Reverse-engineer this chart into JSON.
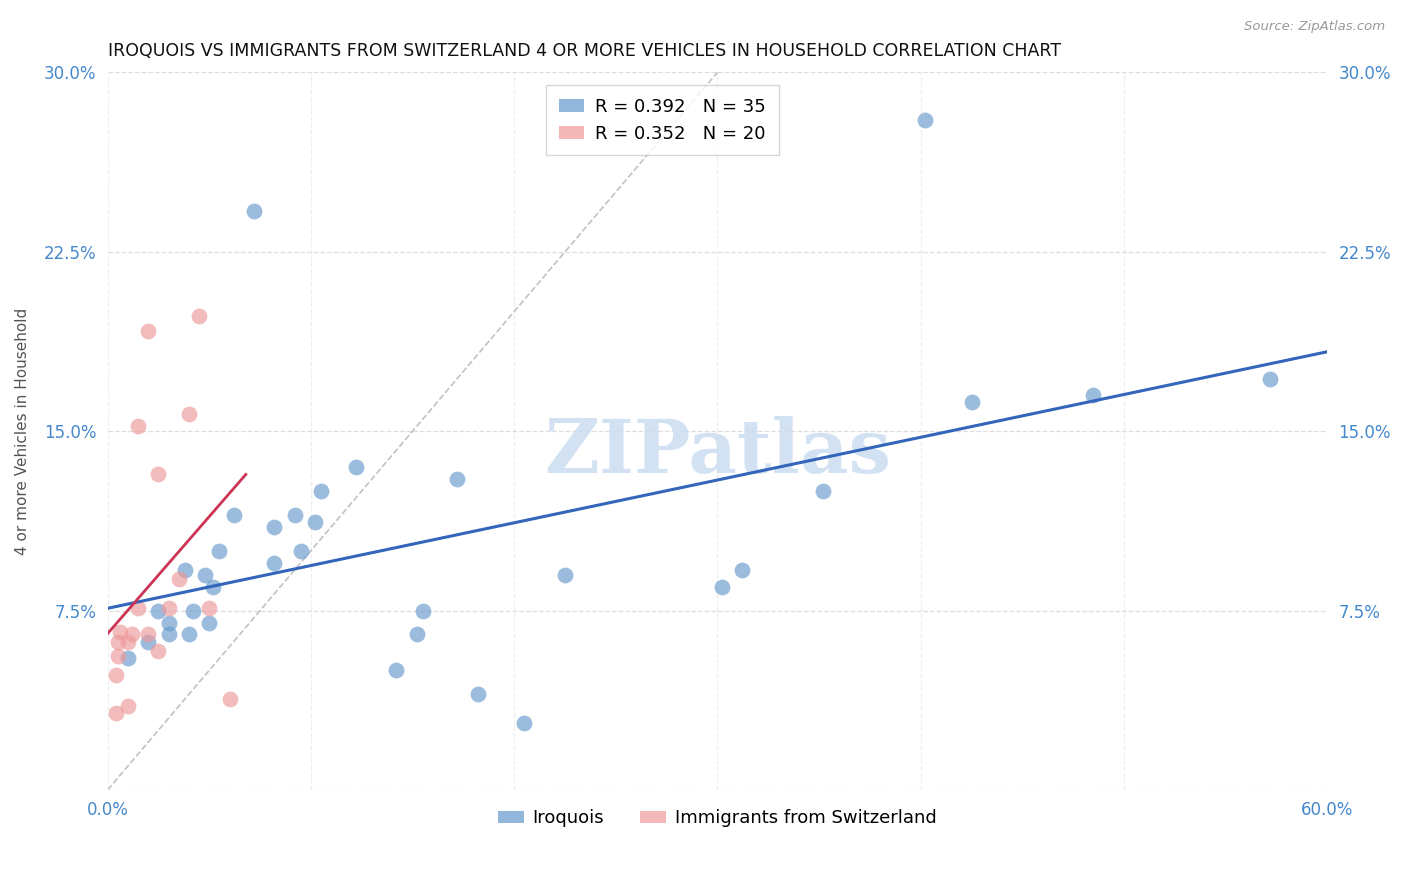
{
  "title": "IROQUOIS VS IMMIGRANTS FROM SWITZERLAND 4 OR MORE VEHICLES IN HOUSEHOLD CORRELATION CHART",
  "source": "Source: ZipAtlas.com",
  "ylabel": "4 or more Vehicles in Household",
  "xlim": [
    0.0,
    0.6
  ],
  "ylim": [
    0.0,
    0.3
  ],
  "xtick_positions": [
    0.0,
    0.1,
    0.2,
    0.3,
    0.4,
    0.5,
    0.6
  ],
  "xticklabels": [
    "0.0%",
    "",
    "",
    "",
    "",
    "",
    "60.0%"
  ],
  "ytick_positions": [
    0.0,
    0.075,
    0.15,
    0.225,
    0.3
  ],
  "yticklabels": [
    "",
    "7.5%",
    "15.0%",
    "22.5%",
    "30.0%"
  ],
  "background_color": "#ffffff",
  "grid_color": "#dddddd",
  "watermark": "ZIPatlas",
  "blue_color": "#6699cc",
  "pink_color": "#ee9999",
  "line_blue": "#3366bb",
  "line_pink": "#cc3355",
  "diagonal_color": "#bbbbbb",
  "tick_color": "#4488cc",
  "iroquois_label": "Iroquois",
  "swiss_label": "Immigrants from Switzerland",
  "iroquois_x": [
    0.01,
    0.02,
    0.025,
    0.03,
    0.03,
    0.038,
    0.04,
    0.042,
    0.048,
    0.05,
    0.052,
    0.055,
    0.062,
    0.072,
    0.082,
    0.082,
    0.092,
    0.095,
    0.102,
    0.105,
    0.122,
    0.142,
    0.152,
    0.155,
    0.172,
    0.182,
    0.205,
    0.225,
    0.302,
    0.312,
    0.352,
    0.402,
    0.425,
    0.485,
    0.572
  ],
  "iroquois_y": [
    0.055,
    0.062,
    0.075,
    0.07,
    0.065,
    0.092,
    0.065,
    0.075,
    0.09,
    0.07,
    0.085,
    0.1,
    0.115,
    0.242,
    0.095,
    0.11,
    0.115,
    0.1,
    0.112,
    0.125,
    0.135,
    0.05,
    0.065,
    0.075,
    0.13,
    0.04,
    0.028,
    0.09,
    0.085,
    0.092,
    0.125,
    0.28,
    0.162,
    0.165,
    0.172
  ],
  "swiss_x": [
    0.004,
    0.004,
    0.005,
    0.005,
    0.006,
    0.01,
    0.01,
    0.012,
    0.015,
    0.015,
    0.02,
    0.02,
    0.025,
    0.025,
    0.03,
    0.035,
    0.04,
    0.045,
    0.05,
    0.06
  ],
  "swiss_y": [
    0.032,
    0.048,
    0.056,
    0.062,
    0.066,
    0.035,
    0.062,
    0.065,
    0.076,
    0.152,
    0.065,
    0.192,
    0.132,
    0.058,
    0.076,
    0.088,
    0.157,
    0.198,
    0.076,
    0.038
  ],
  "marker_size": 130,
  "title_fontsize": 12.5,
  "axis_label_fontsize": 11,
  "tick_fontsize": 12,
  "legend_fontsize": 13,
  "watermark_fontsize": 54
}
